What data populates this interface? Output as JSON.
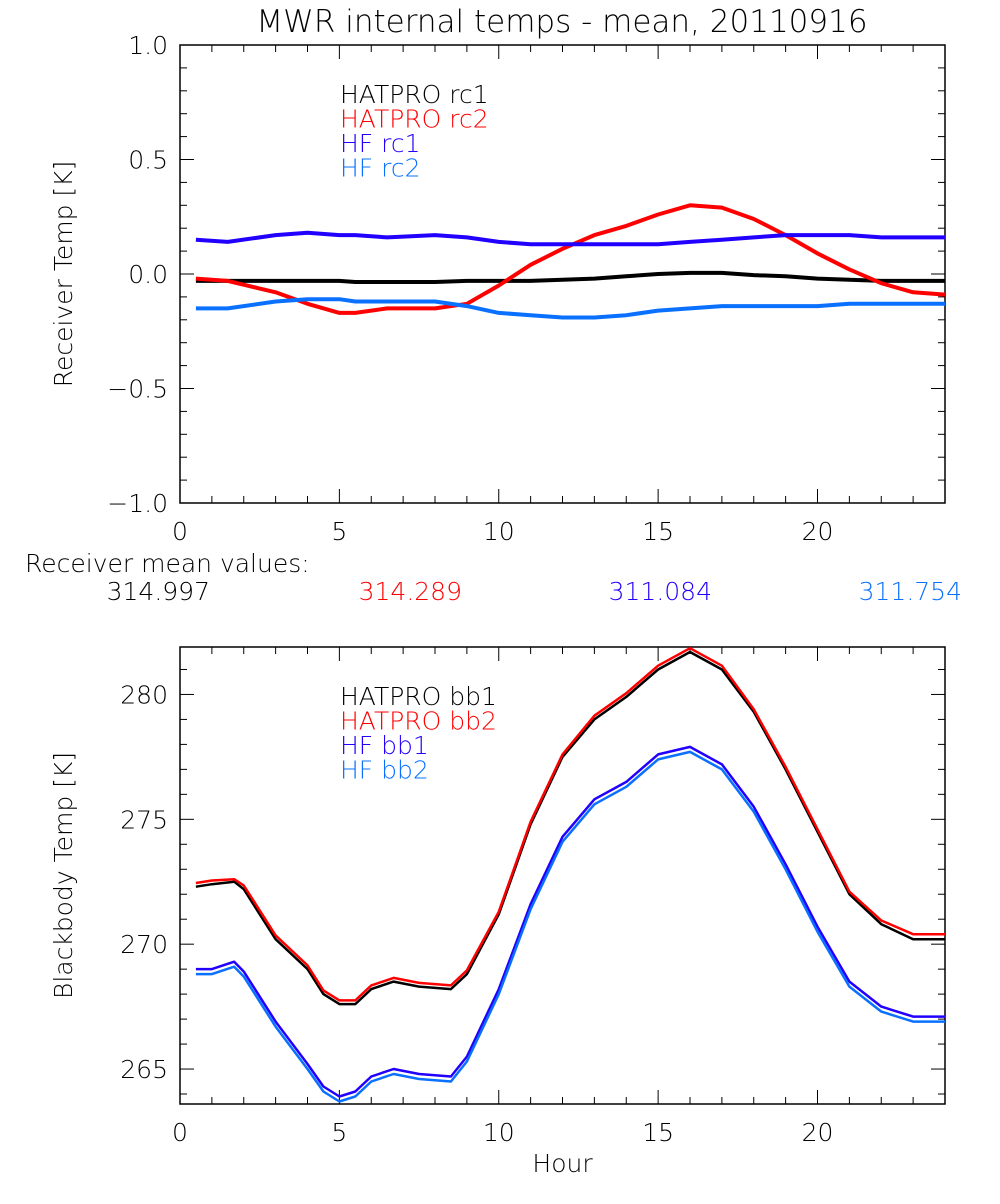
{
  "title": "MWR internal temps - mean, 20110916",
  "mean_label": "Receiver mean values:",
  "mean_values": [
    {
      "text": "314.997",
      "color": "#000000"
    },
    {
      "text": "314.289",
      "color": "#ff0000"
    },
    {
      "text": "311.084",
      "color": "#2200ff"
    },
    {
      "text": "311.754",
      "color": "#0a70ff"
    }
  ],
  "chart_data": [
    {
      "type": "line",
      "ylabel": "Receiver Temp [K]",
      "xlabel": "",
      "xlim": [
        0,
        24
      ],
      "ylim": [
        -1,
        1
      ],
      "xticks": [
        "0",
        "5",
        "10",
        "15",
        "20"
      ],
      "yticks": [
        "-1.0",
        "-0.5",
        "0.0",
        "0.5",
        "1.0"
      ],
      "grid": false,
      "legend": "upper-left",
      "x": [
        0.5,
        1.5,
        3,
        4,
        5,
        5.5,
        6.5,
        8,
        9,
        10,
        11,
        12,
        13,
        14,
        15,
        16,
        17,
        18,
        19,
        20,
        21,
        22,
        23,
        24
      ],
      "series": [
        {
          "name": "HATPRO rc1",
          "color": "#000000",
          "values": [
            -0.03,
            -0.03,
            -0.03,
            -0.03,
            -0.03,
            -0.035,
            -0.035,
            -0.035,
            -0.03,
            -0.03,
            -0.03,
            -0.025,
            -0.02,
            -0.01,
            0.0,
            0.005,
            0.005,
            -0.005,
            -0.01,
            -0.02,
            -0.025,
            -0.03,
            -0.03,
            -0.03
          ]
        },
        {
          "name": "HATPRO rc2",
          "color": "#ff0000",
          "values": [
            -0.02,
            -0.03,
            -0.08,
            -0.13,
            -0.17,
            -0.17,
            -0.15,
            -0.15,
            -0.13,
            -0.05,
            0.04,
            0.11,
            0.17,
            0.21,
            0.26,
            0.3,
            0.29,
            0.24,
            0.17,
            0.09,
            0.02,
            -0.04,
            -0.08,
            -0.09
          ]
        },
        {
          "name": "HF rc1",
          "color": "#2200ff",
          "values": [
            0.15,
            0.14,
            0.17,
            0.18,
            0.17,
            0.17,
            0.16,
            0.17,
            0.16,
            0.14,
            0.13,
            0.13,
            0.13,
            0.13,
            0.13,
            0.14,
            0.15,
            0.16,
            0.17,
            0.17,
            0.17,
            0.16,
            0.16,
            0.16
          ]
        },
        {
          "name": "HF rc2",
          "color": "#0a70ff",
          "values": [
            -0.15,
            -0.15,
            -0.12,
            -0.11,
            -0.11,
            -0.12,
            -0.12,
            -0.12,
            -0.14,
            -0.17,
            -0.18,
            -0.19,
            -0.19,
            -0.18,
            -0.16,
            -0.15,
            -0.14,
            -0.14,
            -0.14,
            -0.14,
            -0.13,
            -0.13,
            -0.13,
            -0.13
          ]
        }
      ]
    },
    {
      "type": "line",
      "ylabel": "Blackbody Temp [K]",
      "xlabel": "Hour",
      "xlim": [
        0,
        24
      ],
      "ylim": [
        263.6,
        281.9
      ],
      "xticks": [
        "0",
        "5",
        "10",
        "15",
        "20"
      ],
      "yticks": [
        "265",
        "270",
        "275",
        "280"
      ],
      "grid": false,
      "legend": "upper-left",
      "x": [
        0.5,
        1,
        1.7,
        2,
        3,
        4,
        4.5,
        5,
        5.5,
        6,
        6.7,
        7.5,
        8.5,
        9,
        10,
        11,
        12,
        13,
        14,
        15,
        16,
        17,
        18,
        19,
        20,
        21,
        22,
        23,
        24
      ],
      "series": [
        {
          "name": "HATPRO bb1",
          "color": "#000000",
          "values": [
            272.3,
            272.4,
            272.5,
            272.2,
            270.2,
            269.0,
            268.0,
            267.6,
            267.6,
            268.2,
            268.5,
            268.3,
            268.2,
            268.8,
            271.2,
            274.8,
            277.5,
            279.0,
            279.9,
            281.0,
            281.7,
            281.0,
            279.3,
            277.0,
            274.5,
            272.0,
            270.8,
            270.2,
            270.2
          ]
        },
        {
          "name": "HATPRO bb2",
          "color": "#ff0000",
          "values": [
            272.45,
            272.55,
            272.6,
            272.35,
            270.35,
            269.15,
            268.15,
            267.75,
            267.75,
            268.35,
            268.65,
            268.45,
            268.35,
            268.95,
            271.3,
            274.9,
            277.6,
            279.15,
            280.05,
            281.15,
            281.85,
            281.15,
            279.4,
            277.1,
            274.6,
            272.1,
            270.95,
            270.4,
            270.4
          ]
        },
        {
          "name": "HF bb1",
          "color": "#2200ff",
          "values": [
            269.0,
            269.0,
            269.3,
            268.9,
            266.9,
            265.2,
            264.3,
            263.9,
            264.1,
            264.7,
            265.0,
            264.8,
            264.7,
            265.5,
            268.2,
            271.6,
            274.3,
            275.8,
            276.5,
            277.6,
            277.9,
            277.2,
            275.5,
            273.2,
            270.7,
            268.5,
            267.5,
            267.1,
            267.1
          ]
        },
        {
          "name": "HF bb2",
          "color": "#0a70ff",
          "values": [
            268.8,
            268.8,
            269.1,
            268.7,
            266.7,
            265.0,
            264.1,
            263.7,
            263.9,
            264.5,
            264.8,
            264.6,
            264.5,
            265.3,
            268.0,
            271.4,
            274.1,
            275.6,
            276.3,
            277.4,
            277.7,
            277.0,
            275.3,
            273.0,
            270.5,
            268.3,
            267.3,
            266.9,
            266.9
          ]
        }
      ]
    }
  ]
}
